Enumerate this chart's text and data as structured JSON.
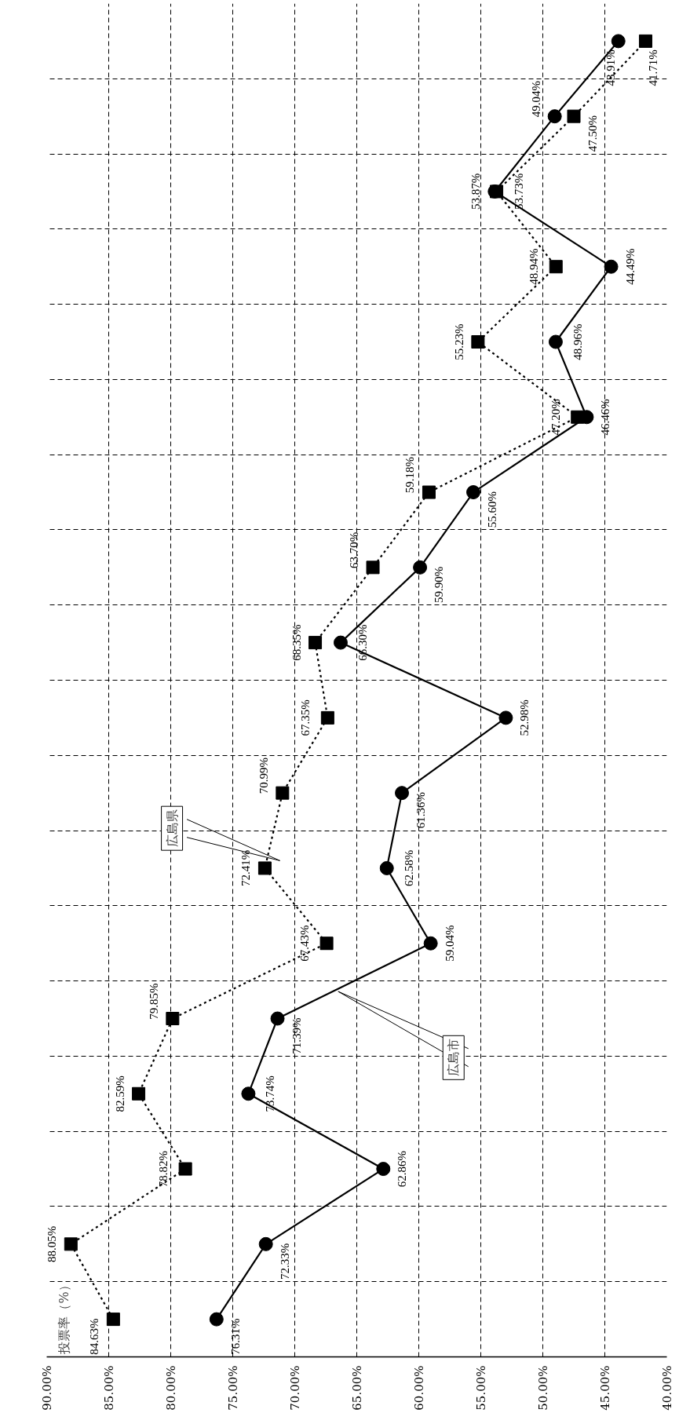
{
  "chart_data": {
    "type": "line",
    "orientation": "horizontal",
    "ylabel": "投票率（%）",
    "categories": [
      null,
      null,
      null,
      null,
      null,
      null,
      null,
      null,
      null,
      null,
      null,
      null,
      null,
      null,
      null,
      null,
      null,
      null
    ],
    "series": [
      {
        "name": "広島市",
        "color": "#000000",
        "marker": "circle",
        "line_style": "solid",
        "values": [
          43.91,
          49.04,
          53.87,
          44.49,
          48.96,
          46.46,
          55.6,
          59.9,
          66.3,
          52.98,
          61.36,
          62.58,
          59.04,
          71.39,
          73.74,
          62.86,
          72.33,
          76.31
        ],
        "value_labels": [
          "43.91%",
          "49.04%",
          "53.87%",
          "44.49%",
          "48.96%",
          "46.46%",
          "55.60%",
          "59.90%",
          "66.30%",
          "52.98%",
          "61.36%",
          "62.58%",
          "59.04%",
          "71.39%",
          "73.74%",
          "62.86%",
          "72.33%",
          "76.31%"
        ]
      },
      {
        "name": "広島県",
        "color": "#000000",
        "marker": "square",
        "line_style": "dotted",
        "values": [
          41.71,
          47.5,
          53.73,
          48.94,
          55.23,
          47.2,
          59.18,
          63.7,
          68.35,
          67.35,
          70.99,
          72.41,
          67.43,
          79.85,
          82.59,
          78.82,
          88.05,
          84.63
        ],
        "value_labels": [
          "41.71%",
          "47.50%",
          "53.73%",
          "48.94%",
          "55.23%",
          "47.20%",
          "59.18%",
          "63.70%",
          "68.35%",
          "67.35%",
          "70.99%",
          "72.41%",
          "67.43%",
          "79.85%",
          "82.59%",
          "78.82%",
          "88.05%",
          "84.63%"
        ]
      }
    ],
    "xlim": [
      90,
      40
    ],
    "xticks": [
      {
        "value": 90,
        "label": "90.00%"
      },
      {
        "value": 85,
        "label": "85.00%"
      },
      {
        "value": 80,
        "label": "80.00%"
      },
      {
        "value": 75,
        "label": "75.00%"
      },
      {
        "value": 70,
        "label": "70.00%"
      },
      {
        "value": 65,
        "label": "65.00%"
      },
      {
        "value": 60,
        "label": "60.00%"
      },
      {
        "value": 55,
        "label": "55.00%"
      },
      {
        "value": 50,
        "label": "50.00%"
      },
      {
        "value": 45,
        "label": "45.00%"
      },
      {
        "value": 40,
        "label": "40.00%"
      }
    ],
    "grid": true,
    "legend": false
  }
}
